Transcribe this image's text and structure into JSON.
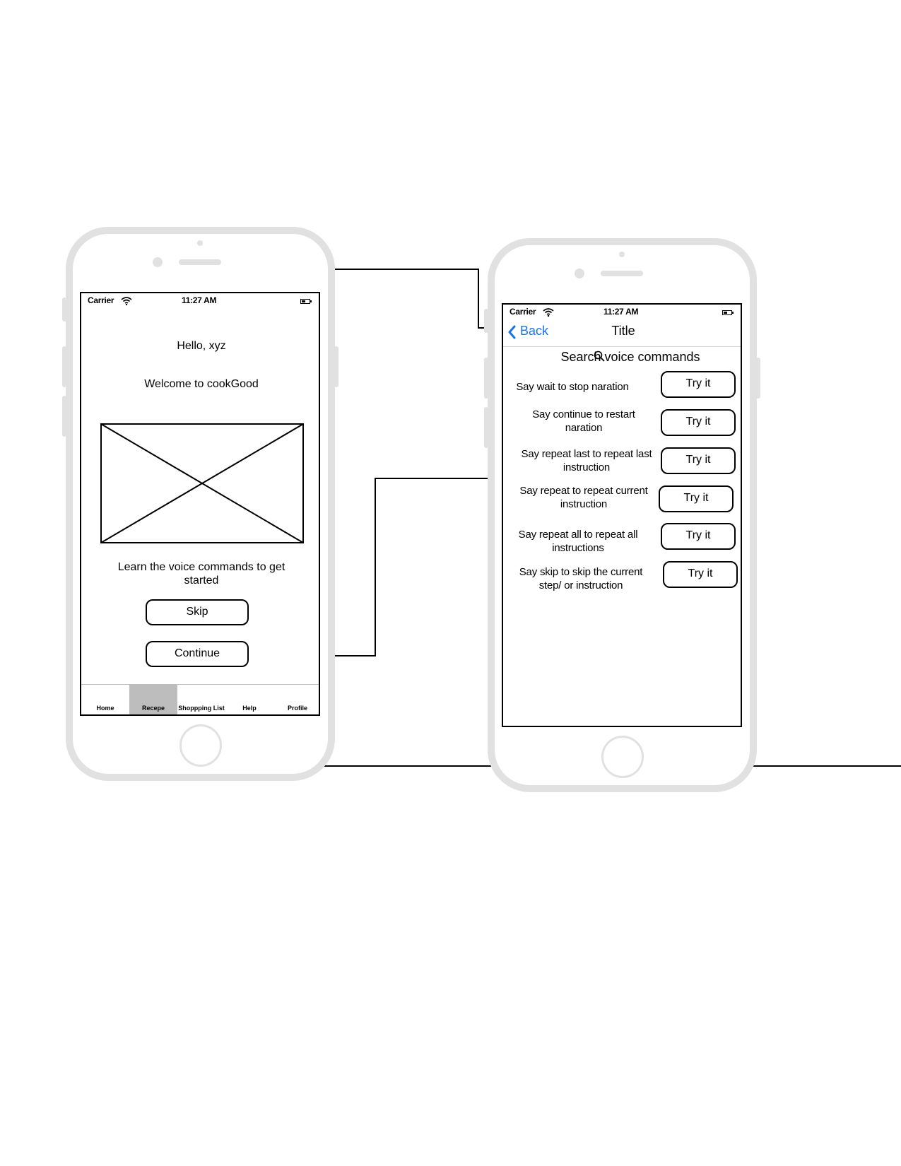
{
  "icons": {
    "wifi": "wifi-icon",
    "battery": "battery-icon",
    "back": "chevron-left-icon",
    "search": "search-icon",
    "image_placeholder": "image-placeholder-icon"
  },
  "colors": {
    "frame": "#e1e1e1",
    "link_blue": "#1a73e8",
    "active_tab": "#bdbdbd"
  },
  "welcome_screen": {
    "status": {
      "carrier": "Carrier",
      "time": "11:27 AM"
    },
    "greeting": "Hello, xyz",
    "welcome": "Welcome to cookGood",
    "learn_prompt": "Learn the voice commands to get started",
    "skip_label": "Skip",
    "continue_label": "Continue",
    "tabs": [
      {
        "label": "Home"
      },
      {
        "label": "Recepe"
      },
      {
        "label": "Shoppping List"
      },
      {
        "label": "Help"
      },
      {
        "label": "Profile"
      }
    ]
  },
  "commands_screen": {
    "status": {
      "carrier": "Carrier",
      "time": "11:27 AM"
    },
    "back_label": "Back",
    "title": "Title",
    "search_label": "Search voice commands",
    "try_label": "Try it",
    "commands": [
      {
        "text": "Say wait to stop naration"
      },
      {
        "text": "Say continue to restart naration"
      },
      {
        "text": "Say repeat last to repeat last instruction"
      },
      {
        "text": "Say repeat to repeat current instruction"
      },
      {
        "text": "Say repeat all to repeat all instructions"
      },
      {
        "text": "Say skip to skip the current step/ or instruction"
      }
    ]
  }
}
